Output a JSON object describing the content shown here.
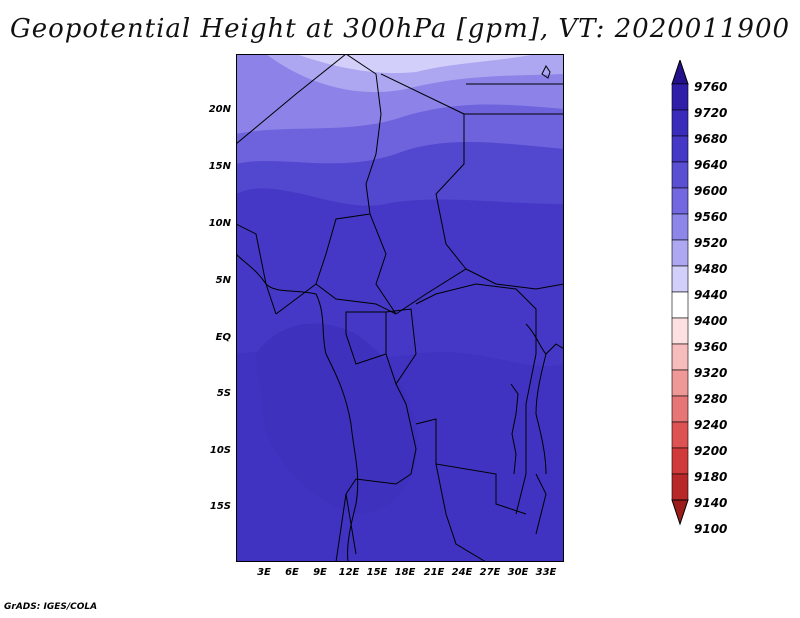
{
  "title": "Geopotential Height at 300hPa [gpm], VT: 2020011900",
  "footer": "GrADS: IGES/COLA",
  "map": {
    "lat_labels": [
      "20N",
      "15N",
      "10N",
      "5N",
      "EQ",
      "5S",
      "10S",
      "15S"
    ],
    "lon_labels": [
      "3E",
      "6E",
      "9E",
      "12E",
      "15E",
      "18E",
      "21E",
      "24E",
      "27E",
      "30E",
      "33E"
    ]
  },
  "colorbar": {
    "labels": [
      "9760",
      "9720",
      "9680",
      "9640",
      "9600",
      "9560",
      "9520",
      "9480",
      "9440",
      "9400",
      "9360",
      "9320",
      "9280",
      "9240",
      "9200",
      "9180",
      "9140",
      "9100"
    ],
    "colors": [
      "#23128c",
      "#2f1fa8",
      "#3a2cbb",
      "#4538c6",
      "#5a4fd3",
      "#7468e0",
      "#8f86ea",
      "#aea8f2",
      "#d2cffa",
      "#ffffff",
      "#fde0e0",
      "#f7bcbc",
      "#ee9898",
      "#e67575",
      "#dd5252",
      "#d13a3a",
      "#b82828",
      "#9c1b1b"
    ]
  }
}
